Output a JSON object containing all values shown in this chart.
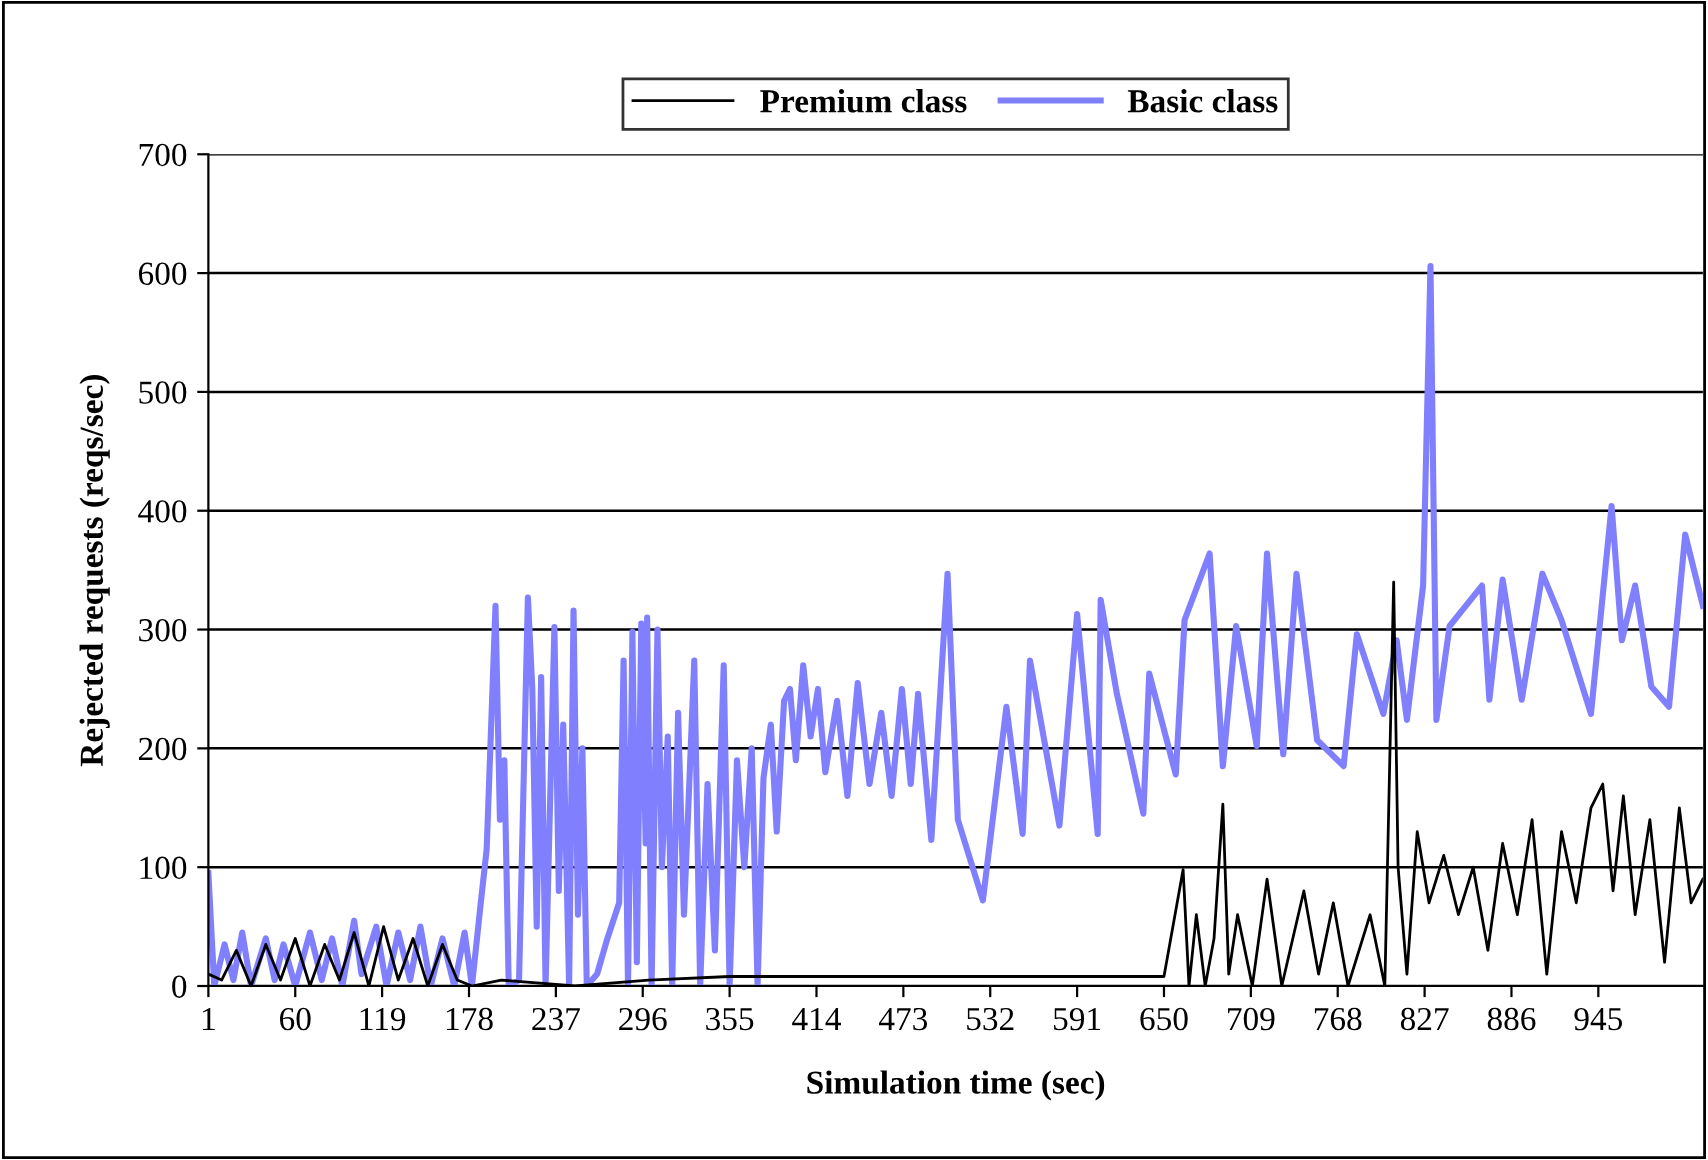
{
  "chart_data": {
    "type": "line",
    "xlabel": "Simulation time (sec)",
    "ylabel": "Rejected requests (reqs/sec)",
    "xlim": [
      1,
      1016
    ],
    "xticks": [
      1,
      60,
      119,
      178,
      237,
      296,
      355,
      414,
      473,
      532,
      591,
      650,
      709,
      768,
      827,
      886,
      945
    ],
    "ylim": [
      0,
      700
    ],
    "yticks": [
      0,
      100,
      200,
      300,
      400,
      500,
      600,
      700
    ],
    "grid": "y",
    "legend": "top",
    "marker": "none",
    "line_style": "solid",
    "series": [
      {
        "name": "Premium class",
        "color": "#000000",
        "x": [
          1,
          10,
          20,
          30,
          40,
          50,
          60,
          70,
          80,
          90,
          100,
          110,
          120,
          130,
          140,
          150,
          160,
          170,
          180,
          200,
          250,
          300,
          355,
          650,
          663,
          667,
          672,
          678,
          684,
          690,
          694,
          700,
          710,
          720,
          730,
          745,
          755,
          765,
          775,
          790,
          800,
          806,
          809,
          815,
          822,
          830,
          840,
          850,
          860,
          870,
          880,
          890,
          900,
          910,
          920,
          930,
          940,
          948,
          955,
          962,
          970,
          980,
          990,
          1000,
          1008,
          1016
        ],
        "values": [
          10,
          5,
          30,
          0,
          35,
          5,
          40,
          0,
          35,
          5,
          45,
          0,
          50,
          5,
          40,
          0,
          35,
          5,
          0,
          5,
          0,
          5,
          8,
          8,
          98,
          0,
          60,
          0,
          40,
          153,
          10,
          60,
          0,
          90,
          0,
          80,
          10,
          70,
          0,
          60,
          0,
          340,
          100,
          10,
          130,
          70,
          110,
          60,
          100,
          30,
          120,
          60,
          140,
          10,
          130,
          70,
          150,
          170,
          80,
          160,
          60,
          140,
          20,
          150,
          70,
          90
        ]
      },
      {
        "name": "Basic class",
        "color": "#8080ff",
        "x": [
          1,
          5,
          12,
          18,
          24,
          30,
          40,
          46,
          52,
          60,
          70,
          78,
          85,
          92,
          100,
          105,
          115,
          122,
          130,
          138,
          145,
          152,
          160,
          168,
          175,
          180,
          186,
          190,
          196,
          199,
          202,
          205,
          212,
          218,
          221,
          224,
          227,
          230,
          236,
          239,
          242,
          246,
          249,
          252,
          255,
          258,
          265,
          272,
          280,
          283,
          286,
          289,
          292,
          295,
          298,
          299,
          302,
          306,
          309,
          313,
          316,
          320,
          324,
          331,
          335,
          340,
          345,
          351,
          355,
          360,
          365,
          370,
          374,
          378,
          383,
          387,
          392,
          396,
          400,
          405,
          410,
          415,
          420,
          428,
          435,
          442,
          450,
          458,
          465,
          472,
          478,
          483,
          492,
          503,
          510,
          527,
          543,
          554,
          559,
          579,
          591,
          605,
          607,
          618,
          636,
          640,
          658,
          664,
          681,
          690,
          699,
          713,
          720,
          731,
          740,
          754,
          772,
          781,
          799,
          808,
          815,
          826,
          831,
          835,
          844,
          866,
          871,
          880,
          893,
          907,
          920,
          940,
          954,
          961,
          970,
          981,
          993,
          1004,
          1016
        ],
        "values": [
          95,
          0,
          35,
          5,
          45,
          0,
          40,
          5,
          35,
          0,
          45,
          5,
          40,
          0,
          55,
          10,
          50,
          0,
          45,
          5,
          50,
          0,
          40,
          0,
          45,
          0,
          70,
          115,
          320,
          140,
          190,
          0,
          5,
          327,
          250,
          50,
          260,
          0,
          302,
          80,
          220,
          0,
          316,
          60,
          200,
          0,
          10,
          40,
          70,
          274,
          0,
          298,
          20,
          305,
          120,
          310,
          0,
          300,
          100,
          210,
          0,
          230,
          60,
          274,
          0,
          170,
          30,
          270,
          0,
          190,
          100,
          200,
          0,
          175,
          220,
          130,
          240,
          250,
          190,
          270,
          210,
          250,
          180,
          240,
          160,
          255,
          170,
          230,
          160,
          250,
          170,
          246,
          123,
          347,
          140,
          72,
          235,
          128,
          274,
          135,
          313,
          128,
          325,
          246,
          145,
          263,
          178,
          308,
          364,
          185,
          303,
          202,
          364,
          195,
          347,
          207,
          185,
          296,
          229,
          291,
          224,
          337,
          606,
          224,
          303,
          337,
          241,
          342,
          241,
          347,
          308,
          229,
          404,
          291,
          337,
          252,
          235,
          380,
          320
        ]
      }
    ]
  }
}
